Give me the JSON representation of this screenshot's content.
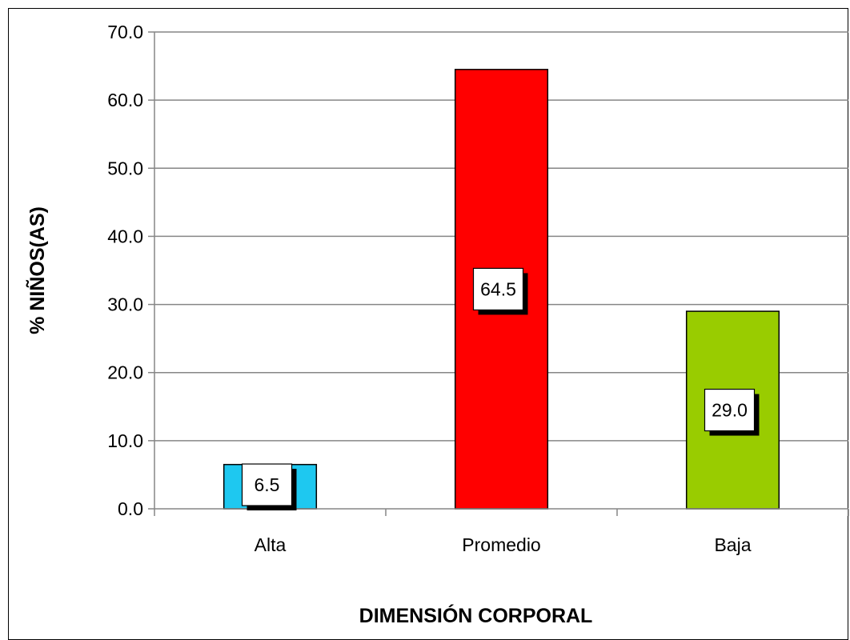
{
  "chart_data": {
    "type": "bar",
    "categories": [
      "Alta",
      "Promedio",
      "Baja"
    ],
    "values": [
      6.5,
      64.5,
      29.0
    ],
    "value_labels": [
      "6.5",
      "64.5",
      "29.0"
    ],
    "colors": [
      "#1ec8f0",
      "#ff0000",
      "#99cc00"
    ],
    "title": "",
    "xlabel": "DIMENSIÓN CORPORAL",
    "ylabel": "% NIÑOS(AS)",
    "ylim": [
      0,
      70
    ],
    "yticks": [
      "0.0",
      "10.0",
      "20.0",
      "30.0",
      "40.0",
      "50.0",
      "60.0",
      "70.0"
    ],
    "grid": true,
    "legend": "none"
  }
}
